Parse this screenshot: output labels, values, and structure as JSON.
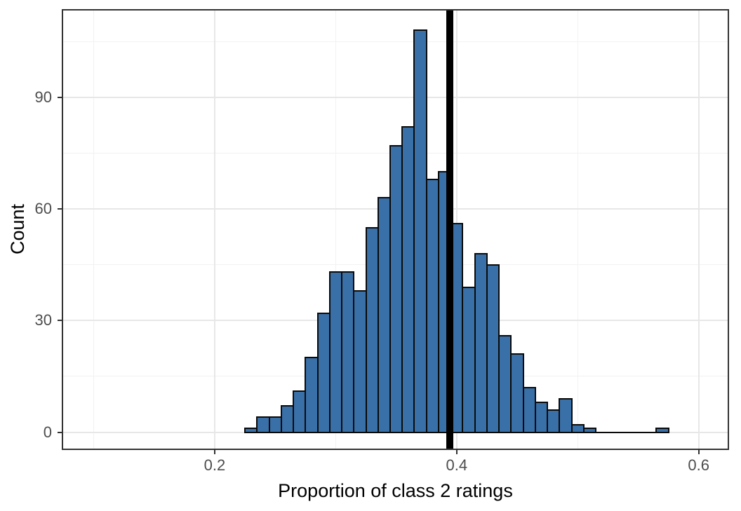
{
  "chart_data": {
    "type": "bar",
    "subtype": "histogram",
    "title": "",
    "xlabel": "Proportion of class 2 ratings",
    "ylabel": "Count",
    "xlim": [
      0.0736,
      0.6251
    ],
    "ylim": [
      -4.8,
      113.7
    ],
    "bin_width": 0.01,
    "bins": [
      {
        "x0": 0.225,
        "count": 1
      },
      {
        "x0": 0.235,
        "count": 4
      },
      {
        "x0": 0.245,
        "count": 4
      },
      {
        "x0": 0.255,
        "count": 7
      },
      {
        "x0": 0.265,
        "count": 11
      },
      {
        "x0": 0.275,
        "count": 20
      },
      {
        "x0": 0.285,
        "count": 32
      },
      {
        "x0": 0.295,
        "count": 43
      },
      {
        "x0": 0.305,
        "count": 43
      },
      {
        "x0": 0.315,
        "count": 38
      },
      {
        "x0": 0.325,
        "count": 55
      },
      {
        "x0": 0.335,
        "count": 63
      },
      {
        "x0": 0.345,
        "count": 77
      },
      {
        "x0": 0.355,
        "count": 82
      },
      {
        "x0": 0.365,
        "count": 108
      },
      {
        "x0": 0.375,
        "count": 68
      },
      {
        "x0": 0.385,
        "count": 70
      },
      {
        "x0": 0.395,
        "count": 56
      },
      {
        "x0": 0.405,
        "count": 39
      },
      {
        "x0": 0.415,
        "count": 48
      },
      {
        "x0": 0.425,
        "count": 45
      },
      {
        "x0": 0.435,
        "count": 26
      },
      {
        "x0": 0.445,
        "count": 21
      },
      {
        "x0": 0.455,
        "count": 12
      },
      {
        "x0": 0.465,
        "count": 8
      },
      {
        "x0": 0.475,
        "count": 6
      },
      {
        "x0": 0.485,
        "count": 9
      },
      {
        "x0": 0.495,
        "count": 2
      },
      {
        "x0": 0.505,
        "count": 1
      },
      {
        "x0": 0.515,
        "count": 0
      },
      {
        "x0": 0.525,
        "count": 0
      },
      {
        "x0": 0.535,
        "count": 0
      },
      {
        "x0": 0.545,
        "count": 0
      },
      {
        "x0": 0.555,
        "count": 0
      },
      {
        "x0": 0.565,
        "count": 1
      }
    ],
    "reference_line_x": 0.3945,
    "x_ticks": [
      0.2,
      0.4,
      0.6
    ],
    "x_tick_labels": [
      "0.2",
      "0.4",
      "0.6"
    ],
    "y_ticks": [
      0,
      30,
      60,
      90
    ],
    "y_tick_labels": [
      "0",
      "30",
      "60",
      "90"
    ],
    "x_minor_gridlines": [
      0.1,
      0.3,
      0.5
    ],
    "y_minor_gridlines": [
      15,
      45,
      75,
      105
    ],
    "grid": true,
    "legend": false,
    "colors": {
      "bar_fill": "#3A70A8",
      "bar_border": "#0A0A0A",
      "reference_line": "#000000",
      "grid_major": "#E7E7E7",
      "grid_minor": "#F2F2F2",
      "panel_border": "#333333",
      "tick_label": "#4D4D4D",
      "axis_title": "#000000",
      "background": "#FFFFFF"
    }
  }
}
